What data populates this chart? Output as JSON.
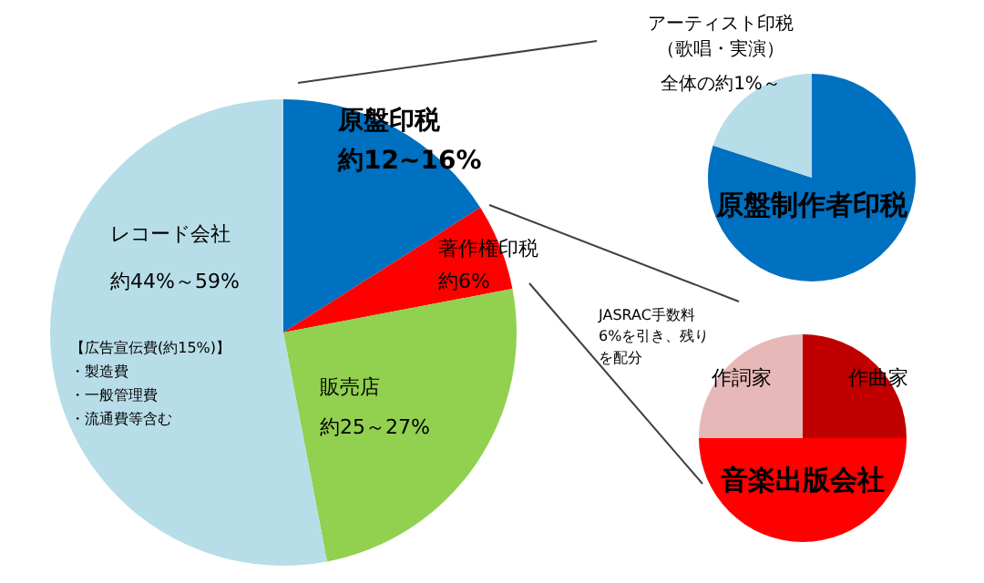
{
  "chart_data": [
    {
      "type": "pie",
      "categories": [
        "原盤印税",
        "著作権印税",
        "販売店",
        "レコード会社"
      ],
      "values": [
        16,
        6,
        25,
        53
      ],
      "colors": [
        "#0070c0",
        "#ff0000",
        "#92d050",
        "#b7dde8"
      ],
      "value_labels": [
        "約12~16%",
        "約6%",
        "約25～27%",
        null
      ],
      "annotations": [
        "約44%～59%",
        "【広告宣伝費(約15%)】",
        "・製造費",
        "・一般管理費",
        "・流通費等含む"
      ]
    },
    {
      "type": "pie",
      "categories": [
        "原盤制作者印税",
        "アーティスト印税（歌唱・実演）"
      ],
      "values": [
        80,
        20
      ],
      "colors": [
        "#0070c0",
        "#b7dde8"
      ],
      "value_labels": [
        null,
        "全体の約1%～"
      ]
    },
    {
      "type": "pie",
      "categories": [
        "作曲家",
        "音楽出版会社",
        "作詞家"
      ],
      "values": [
        25,
        50,
        25
      ],
      "colors": [
        "#c00000",
        "#ff0000",
        "#e6b8b7"
      ],
      "annotations": [
        "JASRAC手数料6%を引き、残りを配分"
      ]
    }
  ]
}
